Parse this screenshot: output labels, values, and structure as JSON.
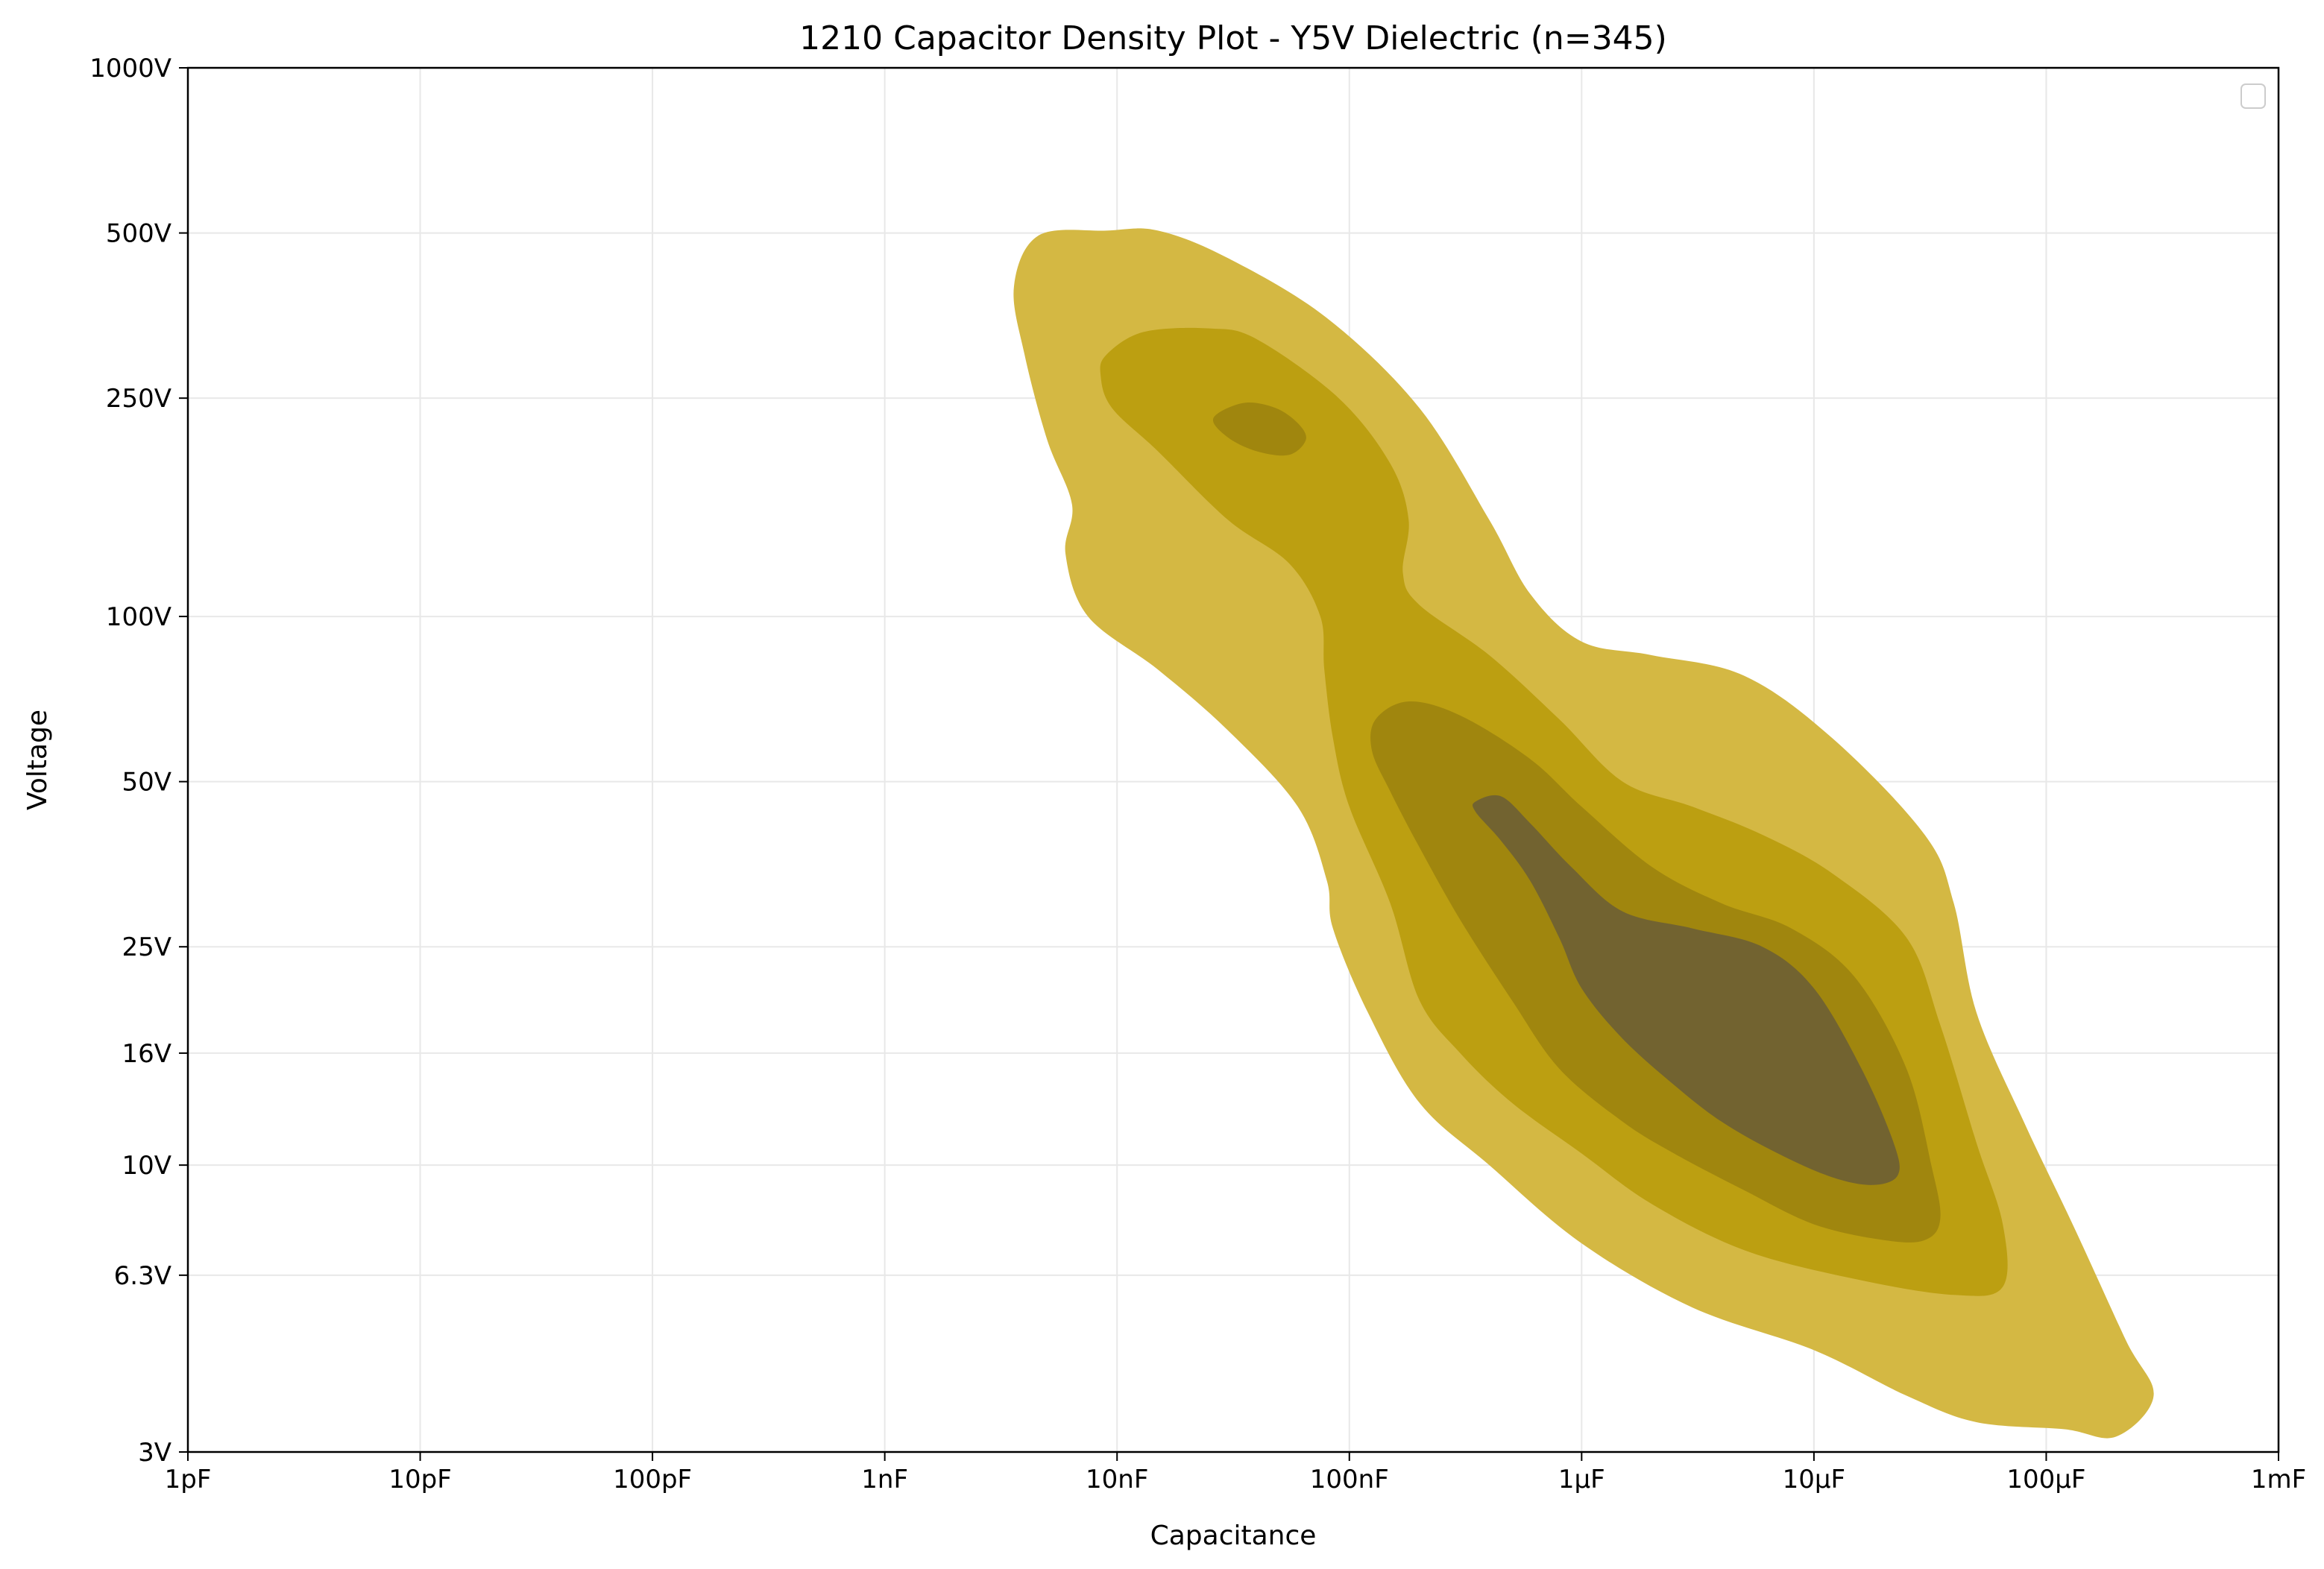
{
  "chart_data": {
    "type": "heatmap",
    "subtype": "kde-contour",
    "title": "1210 Capacitor Density Plot - Y5V Dielectric (n=345)",
    "xlabel": "Capacitance",
    "ylabel": "Voltage",
    "x_scale": "log",
    "y_scale": "log",
    "xlim": [
      "1pF",
      "1mF"
    ],
    "ylim": [
      "3V",
      "1000V"
    ],
    "x_ticks": [
      {
        "value": 1e-12,
        "label": "1pF"
      },
      {
        "value": 1e-11,
        "label": "10pF"
      },
      {
        "value": 1e-10,
        "label": "100pF"
      },
      {
        "value": 1e-09,
        "label": "1nF"
      },
      {
        "value": 1e-08,
        "label": "10nF"
      },
      {
        "value": 1e-07,
        "label": "100nF"
      },
      {
        "value": 1e-06,
        "label": "1µF"
      },
      {
        "value": 1e-05,
        "label": "10µF"
      },
      {
        "value": 0.0001,
        "label": "100µF"
      },
      {
        "value": 0.001,
        "label": "1mF"
      }
    ],
    "y_ticks": [
      {
        "value": 3,
        "label": "3V"
      },
      {
        "value": 6.3,
        "label": "6.3V"
      },
      {
        "value": 10,
        "label": "10V"
      },
      {
        "value": 16,
        "label": "16V"
      },
      {
        "value": 25,
        "label": "25V"
      },
      {
        "value": 50,
        "label": "50V"
      },
      {
        "value": 100,
        "label": "100V"
      },
      {
        "value": 250,
        "label": "250V"
      },
      {
        "value": 500,
        "label": "500V"
      },
      {
        "value": 1000,
        "label": "1000V"
      }
    ],
    "grid": true,
    "legend": {
      "placement": "top-right",
      "entries": []
    },
    "colors": [
      "#d4b843",
      "#bc9f11",
      "#a0860e",
      "#726330",
      "#a0860e"
    ],
    "levels": [
      {
        "name": "level-1",
        "color": "#d4b843",
        "points": [
          [
            3.6e-09,
            400
          ],
          [
            4.6e-09,
            495
          ],
          [
            9e-09,
            505
          ],
          [
            1.5e-08,
            505
          ],
          [
            3e-08,
            450
          ],
          [
            8e-08,
            350
          ],
          [
            2e-07,
            240
          ],
          [
            4e-07,
            150
          ],
          [
            6e-07,
            110
          ],
          [
            1e-06,
            90
          ],
          [
            2e-06,
            85
          ],
          [
            5e-06,
            78
          ],
          [
            1.2e-05,
            60
          ],
          [
            3e-05,
            40
          ],
          [
            4e-05,
            30
          ],
          [
            5e-05,
            19
          ],
          [
            8e-05,
            12
          ],
          [
            0.00013,
            7.8
          ],
          [
            0.00022,
            4.8
          ],
          [
            0.00029,
            3.8
          ],
          [
            0.0002,
            3.2
          ],
          [
            0.00012,
            3.3
          ],
          [
            5e-05,
            3.4
          ],
          [
            2.5e-05,
            3.8
          ],
          [
            1e-05,
            4.6
          ],
          [
            3e-06,
            5.5
          ],
          [
            1e-06,
            7.2
          ],
          [
            4e-07,
            10
          ],
          [
            2e-07,
            13
          ],
          [
            1.2e-07,
            19
          ],
          [
            8.5e-08,
            27
          ],
          [
            8e-08,
            33
          ],
          [
            6e-08,
            45
          ],
          [
            3e-08,
            62
          ],
          [
            1.5e-08,
            80
          ],
          [
            7.5e-09,
            100
          ],
          [
            6e-09,
            130
          ],
          [
            6.4e-09,
            160
          ],
          [
            5e-09,
            210
          ],
          [
            4e-09,
            300
          ]
        ]
      },
      {
        "name": "level-2",
        "color": "#bc9f11",
        "points": [
          [
            9e-09,
            300
          ],
          [
            1.3e-08,
            330
          ],
          [
            2.5e-08,
            335
          ],
          [
            4e-08,
            320
          ],
          [
            9e-08,
            250
          ],
          [
            1.5e-07,
            190
          ],
          [
            1.8e-07,
            150
          ],
          [
            1.7e-07,
            120
          ],
          [
            2e-07,
            105
          ],
          [
            4e-07,
            85
          ],
          [
            8e-07,
            65
          ],
          [
            1.5e-06,
            50
          ],
          [
            3e-06,
            45
          ],
          [
            6e-06,
            40
          ],
          [
            1.2e-05,
            34
          ],
          [
            2.5e-05,
            26
          ],
          [
            3.5e-05,
            18
          ],
          [
            5e-05,
            11
          ],
          [
            6.5e-05,
            7.8
          ],
          [
            6.5e-05,
            6
          ],
          [
            4e-05,
            5.8
          ],
          [
            1.5e-05,
            6.2
          ],
          [
            5e-06,
            7
          ],
          [
            2e-06,
            8.5
          ],
          [
            1e-06,
            10.5
          ],
          [
            5e-07,
            13
          ],
          [
            3e-07,
            16
          ],
          [
            2e-07,
            20
          ],
          [
            1.5e-07,
            30
          ],
          [
            1e-07,
            45
          ],
          [
            8.5e-08,
            60
          ],
          [
            7.8e-08,
            80
          ],
          [
            7.5e-08,
            100
          ],
          [
            5.5e-08,
            125
          ],
          [
            3e-08,
            150
          ],
          [
            1.5e-08,
            200
          ],
          [
            9.5e-09,
            240
          ],
          [
            8.5e-09,
            275
          ]
        ]
      },
      {
        "name": "level-3",
        "color": "#a0860e",
        "points": [
          [
            1.3e-07,
            65
          ],
          [
            1.8e-07,
            70
          ],
          [
            3e-07,
            66
          ],
          [
            6e-07,
            55
          ],
          [
            1e-06,
            45
          ],
          [
            2e-06,
            35
          ],
          [
            4e-06,
            30
          ],
          [
            8e-06,
            27
          ],
          [
            1.5e-05,
            22
          ],
          [
            2.5e-05,
            15
          ],
          [
            3.2e-05,
            10
          ],
          [
            3.5e-05,
            8
          ],
          [
            3e-05,
            7.3
          ],
          [
            2e-05,
            7.3
          ],
          [
            1e-05,
            7.8
          ],
          [
            5e-06,
            9
          ],
          [
            2.5e-06,
            10.5
          ],
          [
            1.5e-06,
            12
          ],
          [
            8e-07,
            15
          ],
          [
            5e-07,
            20
          ],
          [
            3e-07,
            28
          ],
          [
            2e-07,
            38
          ],
          [
            1.5e-07,
            48
          ],
          [
            1.25e-07,
            57
          ]
        ]
      },
      {
        "name": "level-4",
        "color": "#726330",
        "points": [
          [
            3.5e-07,
            46
          ],
          [
            4.5e-07,
            47
          ],
          [
            6e-07,
            42
          ],
          [
            9e-07,
            35
          ],
          [
            1.5e-06,
            29
          ],
          [
            3e-06,
            27
          ],
          [
            6e-06,
            25
          ],
          [
            1e-05,
            21
          ],
          [
            1.6e-05,
            15
          ],
          [
            2.2e-05,
            11
          ],
          [
            2.3e-05,
            9.6
          ],
          [
            1.8e-05,
            9.2
          ],
          [
            1.2e-05,
            9.5
          ],
          [
            7e-06,
            10.5
          ],
          [
            4e-06,
            12
          ],
          [
            2.5e-06,
            14
          ],
          [
            1.5e-06,
            17
          ],
          [
            1e-06,
            21
          ],
          [
            8e-07,
            26
          ],
          [
            6e-07,
            33
          ],
          [
            4.5e-07,
            39
          ],
          [
            3.5e-07,
            44
          ]
        ]
      },
      {
        "name": "level-5",
        "color": "#a0860e",
        "points": [
          [
            2.6e-08,
            230
          ],
          [
            3.5e-08,
            245
          ],
          [
            4.8e-08,
            240
          ],
          [
            6e-08,
            225
          ],
          [
            6.5e-08,
            210
          ],
          [
            5.5e-08,
            197
          ],
          [
            4e-08,
            200
          ],
          [
            3e-08,
            212
          ]
        ]
      }
    ]
  }
}
